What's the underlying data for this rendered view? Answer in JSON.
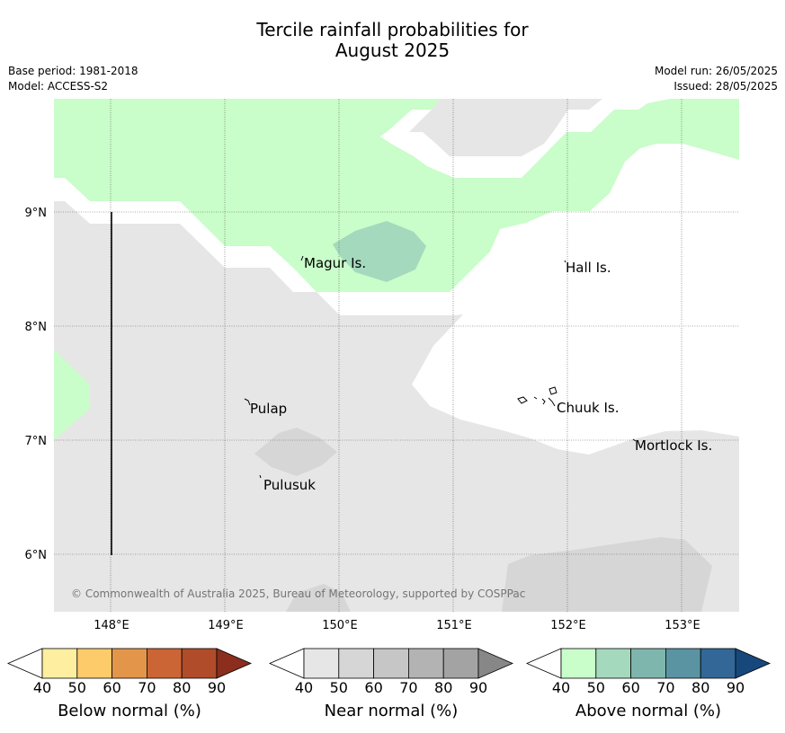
{
  "title": {
    "line1": "Tercile rainfall probabilities for",
    "line2": "August 2025"
  },
  "meta": {
    "base_period": "Base period: 1981-2018",
    "model": "Model: ACCESS-S2",
    "model_run": "Model run: 26/05/2025",
    "issued": "Issued: 28/05/2025"
  },
  "map": {
    "lat_ticks": [
      "9°N",
      "8°N",
      "7°N",
      "6°N"
    ],
    "lon_ticks": [
      "148°E",
      "149°E",
      "150°E",
      "151°E",
      "152°E",
      "153°E"
    ],
    "places": [
      {
        "name": "Magur Is."
      },
      {
        "name": "Hall Is."
      },
      {
        "name": "Pulap"
      },
      {
        "name": "Chuuk Is."
      },
      {
        "name": "Mortlock Is."
      },
      {
        "name": "Pulusuk"
      }
    ],
    "copyright": "© Commonwealth of Australia 2025, Bureau of Meteorology, supported by COSPPac"
  },
  "legends": [
    {
      "label": "Below normal (%)",
      "ticks": [
        "40",
        "50",
        "60",
        "70",
        "80",
        "90"
      ],
      "colors": [
        "#ffffff",
        "#feeea0",
        "#fdcb6a",
        "#e3964a",
        "#cc6535",
        "#b04c2a",
        "#8b2e1e"
      ]
    },
    {
      "label": "Near normal (%)",
      "ticks": [
        "40",
        "50",
        "60",
        "70",
        "80",
        "90"
      ],
      "colors": [
        "#ffffff",
        "#e6e6e6",
        "#d6d6d6",
        "#c6c6c6",
        "#b3b3b3",
        "#a3a3a3",
        "#878787"
      ]
    },
    {
      "label": "Above normal (%)",
      "ticks": [
        "40",
        "50",
        "60",
        "70",
        "80",
        "90"
      ],
      "colors": [
        "#ffffff",
        "#c9fdc9",
        "#a5d9bd",
        "#7eb6ae",
        "#5a94a2",
        "#336798",
        "#17487c"
      ]
    }
  ],
  "colors": {
    "above_40_50": "#c9fdc9",
    "above_50_60": "#a5d9bd",
    "near_40_50": "#e6e6e6",
    "near_50_60": "#d6d6d6",
    "gridline": "#555555"
  }
}
